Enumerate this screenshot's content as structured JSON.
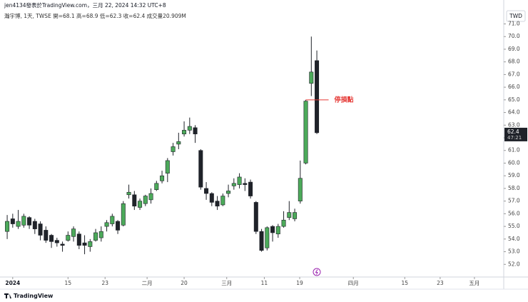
{
  "header": {
    "title": "jen4134發表於TradingView.com，三月 22, 2024 14:32 UTC+8",
    "symbol": "瀚宇博, 1天, TWSE  開=68.1 高=68.9 低=62.3 收=62.4 成交量20.909M",
    "currency": "TWD",
    "footer": "TradingView"
  },
  "chart_data": {
    "type": "candlestick",
    "x": [
      0,
      1,
      2,
      3,
      4,
      5,
      6,
      7,
      8,
      9,
      10,
      11,
      12,
      13,
      14,
      15,
      16,
      17,
      18,
      19,
      20,
      21,
      22,
      23,
      24,
      25,
      26,
      27,
      28,
      29,
      30,
      31,
      32,
      33,
      34,
      35,
      36,
      37,
      38,
      39,
      40,
      41,
      42,
      43,
      44,
      45,
      46,
      47,
      48,
      49,
      50,
      51,
      52,
      53,
      54,
      55,
      56
    ],
    "open": [
      54.6,
      55.6,
      55.0,
      55.1,
      55.7,
      55.4,
      55.2,
      54.7,
      54.3,
      53.9,
      53.6,
      53.9,
      54.2,
      54.4,
      53.7,
      53.4,
      53.9,
      54.1,
      55.0,
      55.2,
      55.4,
      55.1,
      57.5,
      57.5,
      56.5,
      56.8,
      57.1,
      57.9,
      58.6,
      59.2,
      60.9,
      61.5,
      62.3,
      62.6,
      62.8,
      61.0,
      58.0,
      57.6,
      57.0,
      56.7,
      57.6,
      58.2,
      58.3,
      58.4,
      58.5,
      56.9,
      54.6,
      53.3,
      55.0,
      54.4,
      55.0,
      55.7,
      55.6,
      57.0,
      60.0,
      66.3,
      68.1
    ],
    "close": [
      55.4,
      55.2,
      55.4,
      55.8,
      55.1,
      54.8,
      54.3,
      53.9,
      53.8,
      53.7,
      53.5,
      54.3,
      54.8,
      53.5,
      53.5,
      53.8,
      54.5,
      54.6,
      55.3,
      55.8,
      54.7,
      56.8,
      57.7,
      56.6,
      57.0,
      57.4,
      57.6,
      58.4,
      59.0,
      60.2,
      61.3,
      61.7,
      62.6,
      62.9,
      62.3,
      58.1,
      57.6,
      56.9,
      56.6,
      57.4,
      57.8,
      58.4,
      58.9,
      58.3,
      57.4,
      54.6,
      53.1,
      54.9,
      54.5,
      55.0,
      55.5,
      56.1,
      56.1,
      58.8,
      64.9,
      67.2,
      62.4
    ],
    "high": [
      55.9,
      56.0,
      56.3,
      56.0,
      55.8,
      55.6,
      55.4,
      55.0,
      54.4,
      54.1,
      53.8,
      54.6,
      55.0,
      54.6,
      54.3,
      54.0,
      54.8,
      55.0,
      55.5,
      56.0,
      55.5,
      57.0,
      58.3,
      57.8,
      57.2,
      57.5,
      58.0,
      58.6,
      59.4,
      60.4,
      61.6,
      62.4,
      63.3,
      63.6,
      63.0,
      61.1,
      58.5,
      57.7,
      57.4,
      57.6,
      58.3,
      58.8,
      59.2,
      58.8,
      58.7,
      57.0,
      54.8,
      55.0,
      55.1,
      55.2,
      56.2,
      57.0,
      56.4,
      60.2,
      65.0,
      70.0,
      68.9
    ],
    "low": [
      54.0,
      54.9,
      54.8,
      54.9,
      54.8,
      54.4,
      53.9,
      53.7,
      53.3,
      53.4,
      53.0,
      53.8,
      53.8,
      53.2,
      52.8,
      53.0,
      53.8,
      53.8,
      54.6,
      55.0,
      54.4,
      55.0,
      57.2,
      56.3,
      56.3,
      56.6,
      56.8,
      57.8,
      58.4,
      58.5,
      60.6,
      61.1,
      62.1,
      62.3,
      61.6,
      57.9,
      57.1,
      56.6,
      56.3,
      56.6,
      57.3,
      57.9,
      58.0,
      57.8,
      57.2,
      54.4,
      53.0,
      53.1,
      53.8,
      54.1,
      54.9,
      55.5,
      55.4,
      56.8,
      59.9,
      65.3,
      62.3
    ],
    "up_color": "#4caa5a",
    "down_color": "#1f2229",
    "xlim": [
      -1.3,
      89.8
    ],
    "ylim": [
      51,
      72.1
    ],
    "xticks": [
      {
        "value": 1.0,
        "label": "2024"
      },
      {
        "value": 11.0,
        "label": "15"
      },
      {
        "value": 17.7,
        "label": "23"
      },
      {
        "value": 25.3,
        "label": "二月"
      },
      {
        "value": 32.0,
        "label": "20"
      },
      {
        "value": 39.7,
        "label": "三月"
      },
      {
        "value": 46.5,
        "label": "11"
      },
      {
        "value": 52.9,
        "label": "19"
      },
      {
        "value": 62.6,
        "label": "四月"
      },
      {
        "value": 71.9,
        "label": "15"
      },
      {
        "value": 78.3,
        "label": "23"
      },
      {
        "value": 84.5,
        "label": "五月"
      }
    ],
    "yticks": [
      {
        "value": 52,
        "label": "52.0"
      },
      {
        "value": 53,
        "label": "53.0"
      },
      {
        "value": 54,
        "label": "54.0"
      },
      {
        "value": 55,
        "label": "55.0"
      },
      {
        "value": 56,
        "label": "56.0"
      },
      {
        "value": 57,
        "label": "57.0"
      },
      {
        "value": 58,
        "label": "58.0"
      },
      {
        "value": 59,
        "label": "59.0"
      },
      {
        "value": 60,
        "label": "60.0"
      },
      {
        "value": 61,
        "label": "61.0"
      },
      {
        "value": 62,
        "label": "62.0"
      },
      {
        "value": 63,
        "label": "63.0"
      },
      {
        "value": 64,
        "label": "64.0"
      },
      {
        "value": 65,
        "label": "65.0"
      },
      {
        "value": 66,
        "label": "66.0"
      },
      {
        "value": 67,
        "label": "67.0"
      },
      {
        "value": 68,
        "label": "68.0"
      },
      {
        "value": 69,
        "label": "69.0"
      },
      {
        "value": 70,
        "label": "70.0"
      },
      {
        "value": 71,
        "label": "71.0"
      }
    ],
    "annotation": {
      "text": "停損點",
      "value": 65,
      "color": "#e53935"
    },
    "last_price": {
      "value": 62.4,
      "label": "62.4",
      "countdown": "47:21"
    }
  }
}
